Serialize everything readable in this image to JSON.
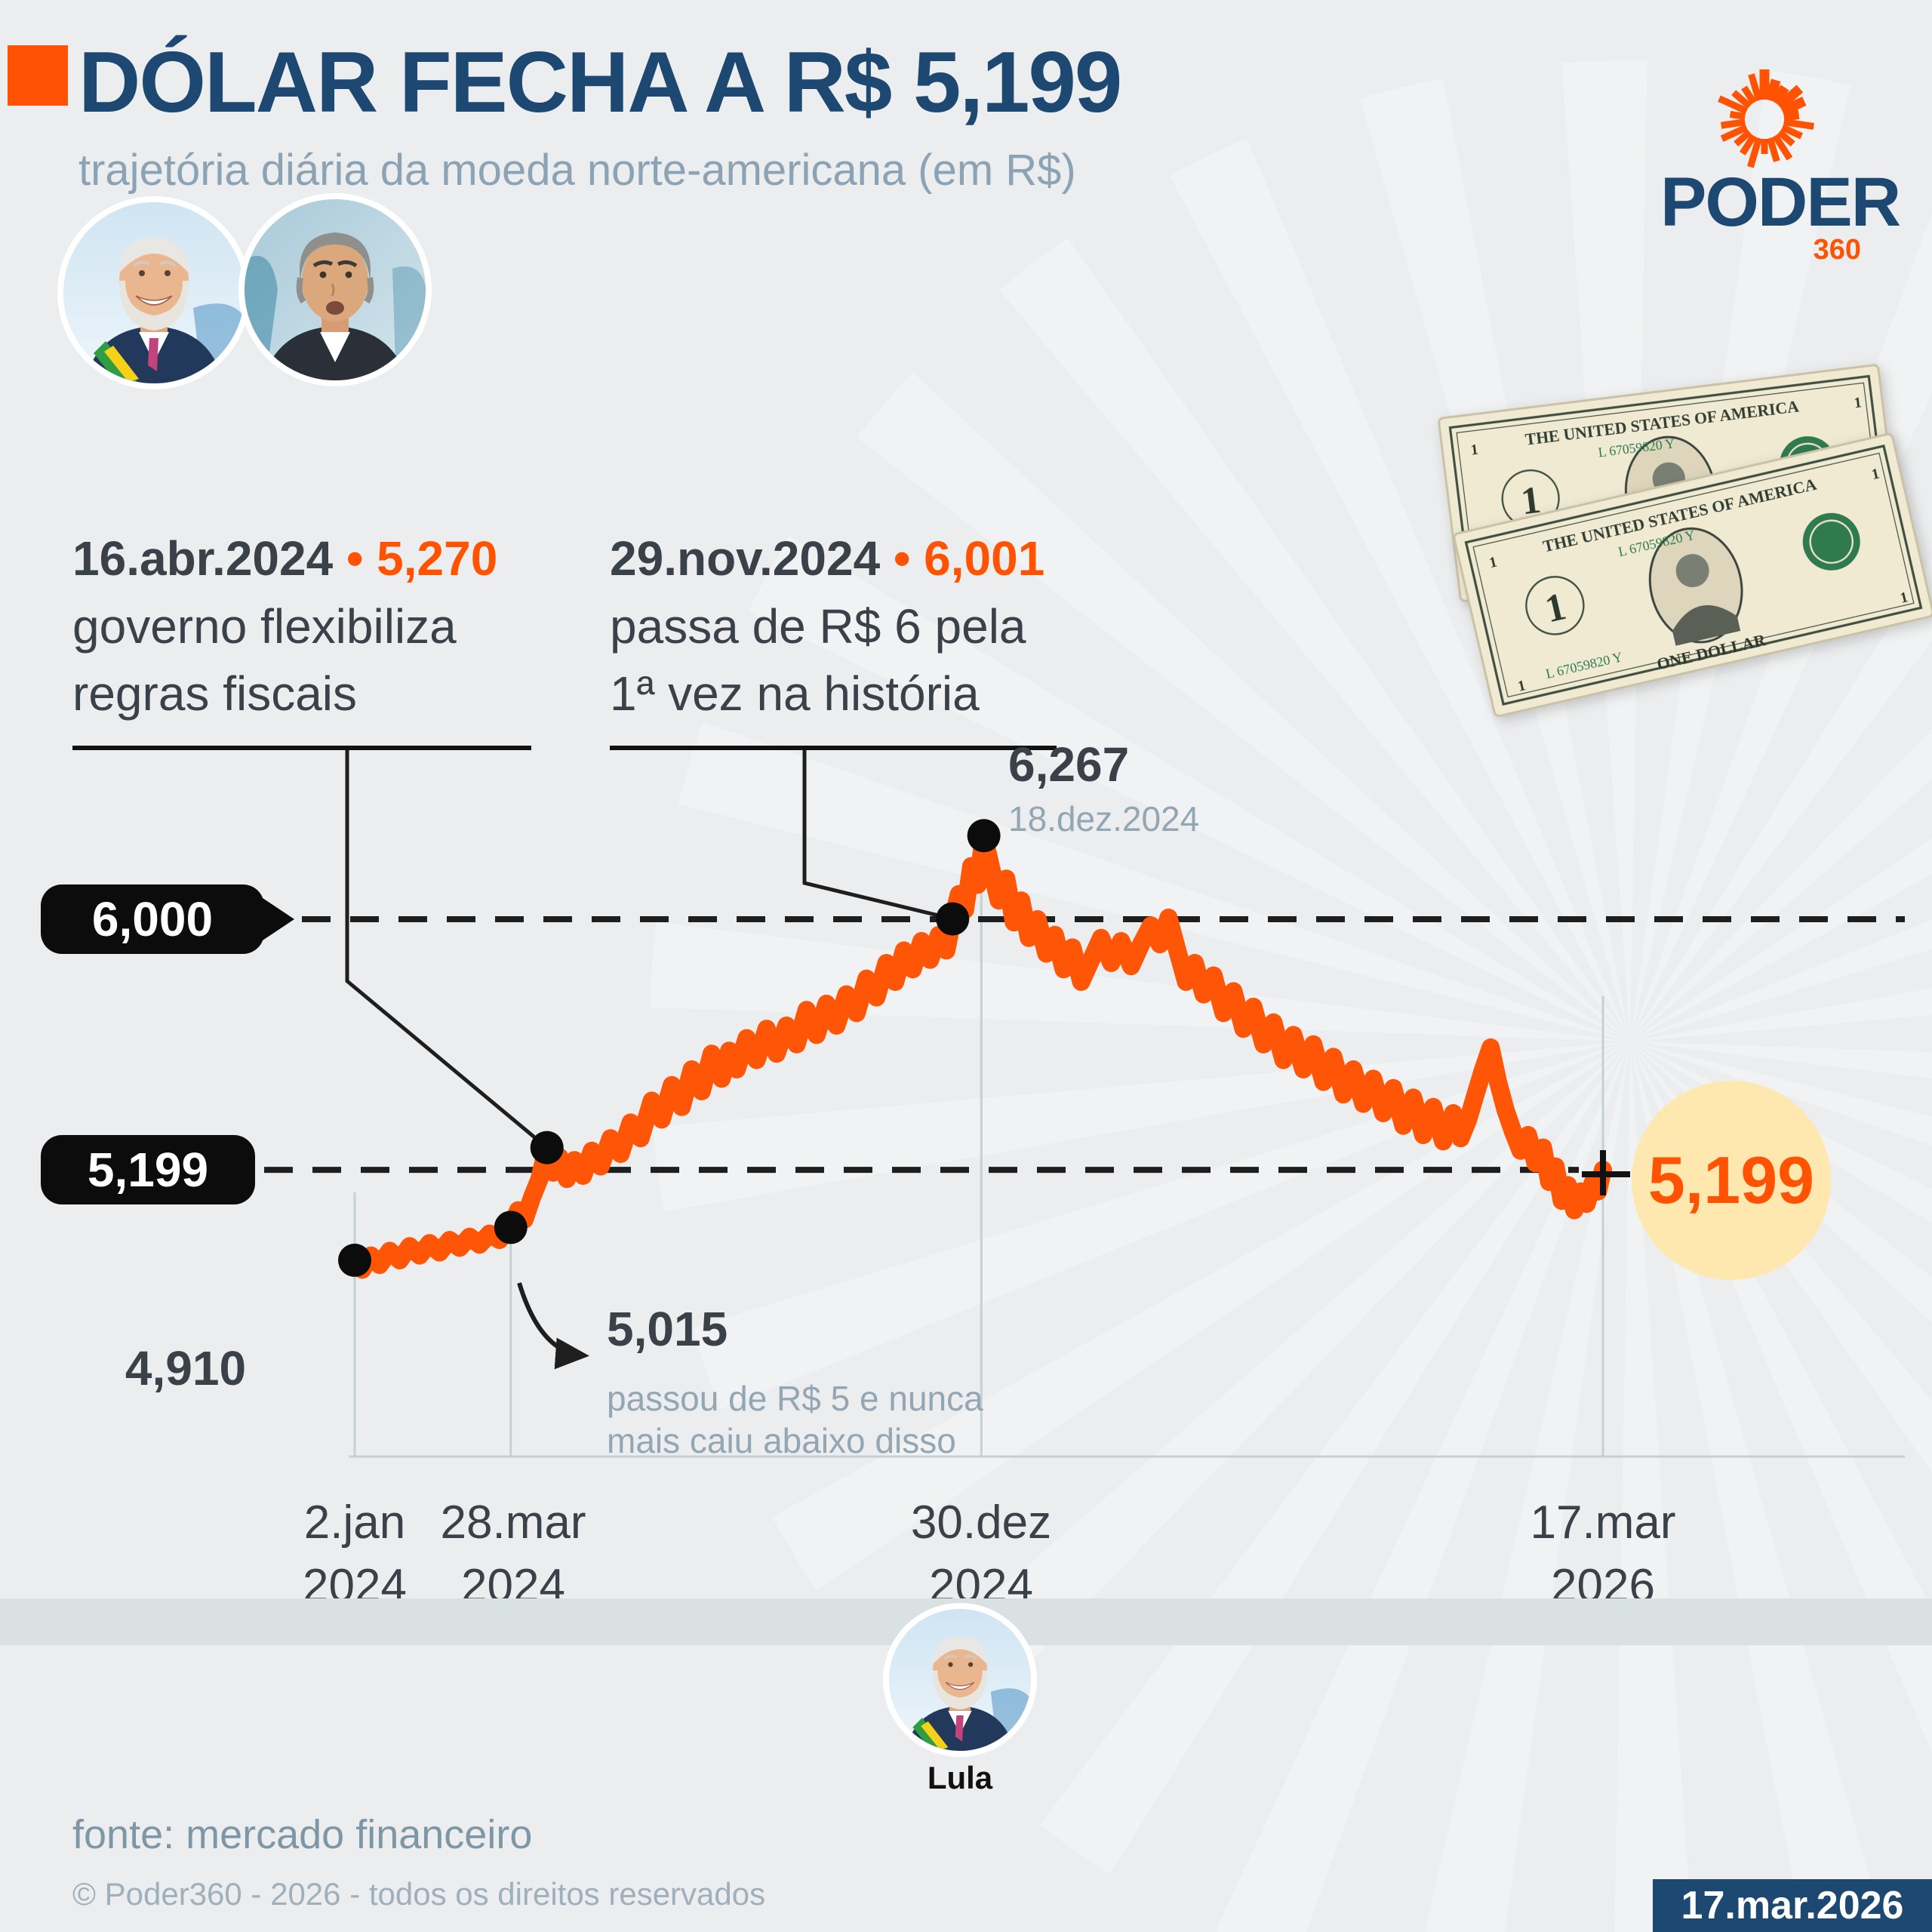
{
  "header": {
    "title": "DÓLAR FECHA A R$ 5,199",
    "subtitle": "trajetória diária da moeda norte-americana (em R$)"
  },
  "logo": {
    "name": "PODER",
    "suffix": "360"
  },
  "annotations": [
    {
      "date": "16.abr.2024",
      "sep": "•",
      "value": "5,270",
      "line1": "governo flexibiliza",
      "line2": "regras fiscais"
    },
    {
      "date": "29.nov.2024",
      "sep": "•",
      "value": "6,001",
      "line1": "passa de R$ 6 pela",
      "line2": "1ª vez na história"
    }
  ],
  "chart_data": {
    "type": "line",
    "title": "trajetória diária da moeda norte-americana (em R$)",
    "unit": "reais por dólar (milésimos)",
    "x_range": [
      "2.jan.2024",
      "17.mar.2026"
    ],
    "ylim": [
      4800,
      6350
    ],
    "grid": "vertical date gridlines, dashed horizontal reference lines",
    "legend_position": "none",
    "reference_lines": [
      {
        "label": "6,000",
        "value": 6000
      },
      {
        "label": "5,199",
        "value": 5199
      }
    ],
    "key_points": [
      {
        "label": "4,910",
        "value": 4910,
        "date": "2.jan.2024",
        "f": 0
      },
      {
        "label": "5,015",
        "value": 5015,
        "date": "28.mar.2024",
        "f": 0.125,
        "note1": "passou de R$ 5 e nunca",
        "note2": "mais caiu abaixo disso"
      },
      {
        "label": "5,270",
        "value": 5270,
        "date": "16.abr.2024",
        "f": 0.154
      },
      {
        "label": "6,001",
        "value": 6001,
        "date": "29.nov.2024",
        "f": 0.479
      },
      {
        "label": "6,267",
        "value": 6267,
        "date": "18.dez.2024",
        "f": 0.504
      }
    ],
    "end_point": {
      "label": "5,199",
      "value": 5199,
      "date": "17.mar.2026"
    },
    "x_ticks": [
      {
        "l1": "2.jan",
        "l2": "2024",
        "f": 0
      },
      {
        "l1": "28.mar",
        "l2": "2024",
        "f": 0.125
      },
      {
        "l1": "30.dez",
        "l2": "2024",
        "f": 0.502
      },
      {
        "l1": "17.mar",
        "l2": "2026",
        "f": 1
      }
    ],
    "series": [
      [
        0,
        4910
      ],
      [
        0.006,
        4880
      ],
      [
        0.013,
        4925
      ],
      [
        0.02,
        4895
      ],
      [
        0.028,
        4940
      ],
      [
        0.036,
        4910
      ],
      [
        0.044,
        4955
      ],
      [
        0.052,
        4925
      ],
      [
        0.06,
        4965
      ],
      [
        0.068,
        4935
      ],
      [
        0.076,
        4975
      ],
      [
        0.084,
        4950
      ],
      [
        0.092,
        4985
      ],
      [
        0.1,
        4960
      ],
      [
        0.108,
        4995
      ],
      [
        0.116,
        4975
      ],
      [
        0.125,
        5015
      ],
      [
        0.131,
        5070
      ],
      [
        0.136,
        5040
      ],
      [
        0.142,
        5110
      ],
      [
        0.148,
        5170
      ],
      [
        0.154,
        5270
      ],
      [
        0.159,
        5190
      ],
      [
        0.164,
        5240
      ],
      [
        0.17,
        5170
      ],
      [
        0.176,
        5230
      ],
      [
        0.183,
        5180
      ],
      [
        0.19,
        5260
      ],
      [
        0.197,
        5210
      ],
      [
        0.205,
        5300
      ],
      [
        0.213,
        5250
      ],
      [
        0.221,
        5350
      ],
      [
        0.229,
        5300
      ],
      [
        0.238,
        5420
      ],
      [
        0.246,
        5360
      ],
      [
        0.254,
        5470
      ],
      [
        0.262,
        5400
      ],
      [
        0.27,
        5520
      ],
      [
        0.278,
        5450
      ],
      [
        0.286,
        5570
      ],
      [
        0.294,
        5490
      ],
      [
        0.3,
        5580
      ],
      [
        0.306,
        5520
      ],
      [
        0.314,
        5620
      ],
      [
        0.322,
        5550
      ],
      [
        0.33,
        5650
      ],
      [
        0.338,
        5570
      ],
      [
        0.346,
        5660
      ],
      [
        0.354,
        5600
      ],
      [
        0.362,
        5710
      ],
      [
        0.37,
        5630
      ],
      [
        0.378,
        5730
      ],
      [
        0.386,
        5660
      ],
      [
        0.394,
        5760
      ],
      [
        0.402,
        5700
      ],
      [
        0.41,
        5810
      ],
      [
        0.418,
        5750
      ],
      [
        0.426,
        5860
      ],
      [
        0.433,
        5800
      ],
      [
        0.44,
        5900
      ],
      [
        0.447,
        5840
      ],
      [
        0.454,
        5930
      ],
      [
        0.461,
        5870
      ],
      [
        0.468,
        5950
      ],
      [
        0.474,
        5900
      ],
      [
        0.479,
        6001
      ],
      [
        0.484,
        6080
      ],
      [
        0.489,
        6030
      ],
      [
        0.494,
        6170
      ],
      [
        0.499,
        6110
      ],
      [
        0.504,
        6267
      ],
      [
        0.51,
        6160
      ],
      [
        0.516,
        6060
      ],
      [
        0.522,
        6130
      ],
      [
        0.528,
        5990
      ],
      [
        0.534,
        6060
      ],
      [
        0.54,
        5940
      ],
      [
        0.547,
        6000
      ],
      [
        0.554,
        5890
      ],
      [
        0.561,
        5950
      ],
      [
        0.568,
        5840
      ],
      [
        0.575,
        5910
      ],
      [
        0.582,
        5800
      ],
      [
        0.59,
        5870
      ],
      [
        0.598,
        5940
      ],
      [
        0.606,
        5860
      ],
      [
        0.614,
        5930
      ],
      [
        0.622,
        5850
      ],
      [
        0.63,
        5920
      ],
      [
        0.638,
        5980
      ],
      [
        0.645,
        5920
      ],
      [
        0.652,
        6005
      ],
      [
        0.659,
        5900
      ],
      [
        0.666,
        5800
      ],
      [
        0.673,
        5860
      ],
      [
        0.68,
        5760
      ],
      [
        0.688,
        5820
      ],
      [
        0.696,
        5700
      ],
      [
        0.704,
        5770
      ],
      [
        0.712,
        5650
      ],
      [
        0.72,
        5720
      ],
      [
        0.728,
        5600
      ],
      [
        0.736,
        5670
      ],
      [
        0.744,
        5550
      ],
      [
        0.752,
        5630
      ],
      [
        0.76,
        5520
      ],
      [
        0.768,
        5600
      ],
      [
        0.776,
        5480
      ],
      [
        0.784,
        5560
      ],
      [
        0.792,
        5440
      ],
      [
        0.8,
        5520
      ],
      [
        0.808,
        5410
      ],
      [
        0.816,
        5490
      ],
      [
        0.824,
        5380
      ],
      [
        0.832,
        5460
      ],
      [
        0.84,
        5340
      ],
      [
        0.848,
        5430
      ],
      [
        0.856,
        5310
      ],
      [
        0.864,
        5400
      ],
      [
        0.872,
        5290
      ],
      [
        0.88,
        5380
      ],
      [
        0.886,
        5300
      ],
      [
        0.892,
        5360
      ],
      [
        0.898,
        5440
      ],
      [
        0.904,
        5520
      ],
      [
        0.91,
        5590
      ],
      [
        0.916,
        5480
      ],
      [
        0.922,
        5390
      ],
      [
        0.928,
        5320
      ],
      [
        0.934,
        5260
      ],
      [
        0.94,
        5310
      ],
      [
        0.946,
        5220
      ],
      [
        0.952,
        5270
      ],
      [
        0.957,
        5160
      ],
      [
        0.962,
        5210
      ],
      [
        0.967,
        5100
      ],
      [
        0.972,
        5150
      ],
      [
        0.977,
        5070
      ],
      [
        0.982,
        5130
      ],
      [
        0.987,
        5090
      ],
      [
        0.992,
        5160
      ],
      [
        0.996,
        5130
      ],
      [
        1,
        5199
      ]
    ]
  },
  "people": {
    "bottom_label": "Lula"
  },
  "bill": {
    "country": "THE UNITED STATES OF AMERICA",
    "denomination": "ONE DOLLAR",
    "serial": "L 67059820 Y",
    "digit": "1"
  },
  "footer": {
    "source": "fonte: mercado financeiro",
    "copyright": "© Poder360 - 2026 - todos os direitos reservados",
    "date_badge": "17.mar.2026"
  },
  "colors": {
    "accent_orange": "#ff5303",
    "brand_blue": "#1d4872",
    "dark_text": "#3b4148",
    "muted_text": "#8ba3b4",
    "band_gray": "#d9e1e3",
    "bubble_yellow": "#ffe8b0",
    "line_orange": "#fe5506"
  }
}
